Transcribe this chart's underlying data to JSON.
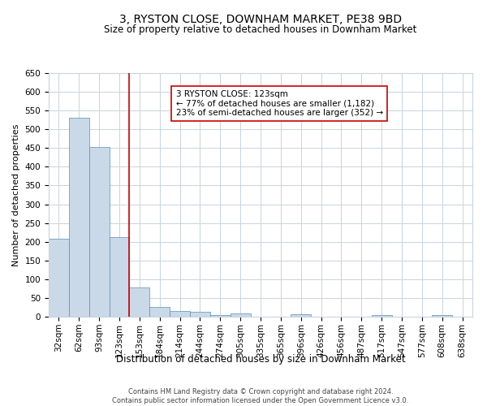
{
  "title": "3, RYSTON CLOSE, DOWNHAM MARKET, PE38 9BD",
  "subtitle": "Size of property relative to detached houses in Downham Market",
  "xlabel": "Distribution of detached houses by size in Downham Market",
  "ylabel": "Number of detached properties",
  "footer_line1": "Contains HM Land Registry data © Crown copyright and database right 2024.",
  "footer_line2": "Contains public sector information licensed under the Open Government Licence v3.0.",
  "categories": [
    "32sqm",
    "62sqm",
    "93sqm",
    "123sqm",
    "153sqm",
    "184sqm",
    "214sqm",
    "244sqm",
    "274sqm",
    "305sqm",
    "335sqm",
    "365sqm",
    "396sqm",
    "426sqm",
    "456sqm",
    "487sqm",
    "517sqm",
    "547sqm",
    "577sqm",
    "608sqm",
    "638sqm"
  ],
  "values": [
    207,
    530,
    452,
    213,
    78,
    27,
    15,
    12,
    5,
    9,
    0,
    0,
    7,
    0,
    0,
    0,
    5,
    0,
    0,
    5,
    0
  ],
  "bar_color": "#c9d9e8",
  "bar_edge_color": "#5b8db8",
  "bar_edge_width": 0.5,
  "vline_x": 3,
  "vline_color": "#cc0000",
  "annotation_text": "3 RYSTON CLOSE: 123sqm\n← 77% of detached houses are smaller (1,182)\n23% of semi-detached houses are larger (352) →",
  "annotation_box_color": "white",
  "annotation_box_edge_color": "#cc0000",
  "annotation_fontsize": 7.5,
  "ylim": [
    0,
    650
  ],
  "yticks": [
    0,
    50,
    100,
    150,
    200,
    250,
    300,
    350,
    400,
    450,
    500,
    550,
    600,
    650
  ],
  "grid_color": "#c8d4e0",
  "title_fontsize": 10,
  "subtitle_fontsize": 8.5,
  "ylabel_fontsize": 8,
  "xlabel_fontsize": 8.5,
  "tick_fontsize": 7.5,
  "footer_fontsize": 6.0
}
